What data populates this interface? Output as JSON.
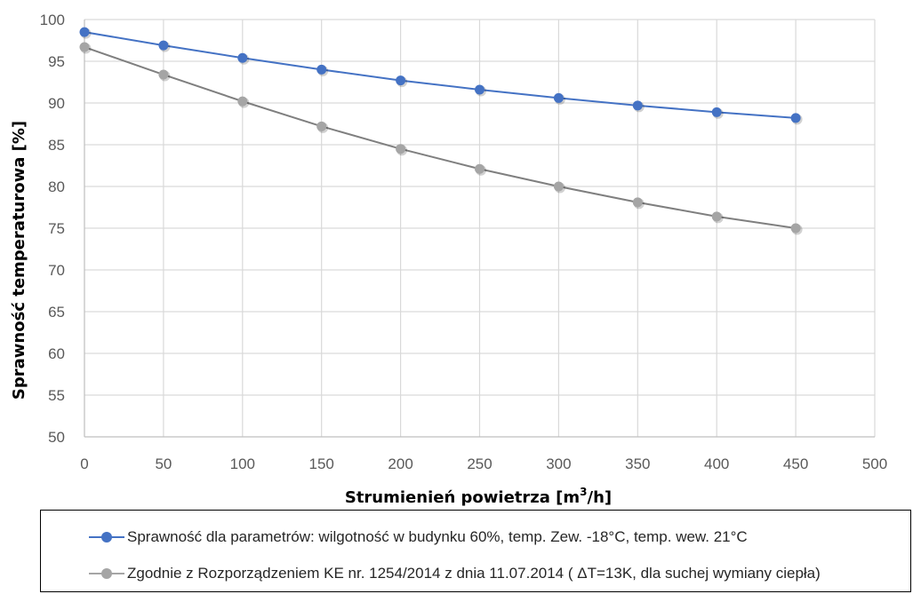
{
  "chart_data": {
    "type": "line",
    "xlabel_main": "Strumienień powietrza [m",
    "xlabel_sup": "3",
    "xlabel_tail": "/h]",
    "ylabel": "Sprawność temperaturowa [%]",
    "xlim": [
      0,
      500
    ],
    "ylim": [
      50,
      100
    ],
    "x_ticks": [
      "0",
      "50",
      "100",
      "150",
      "200",
      "250",
      "300",
      "350",
      "400",
      "450",
      "500"
    ],
    "y_ticks": [
      "50",
      "55",
      "60",
      "65",
      "70",
      "75",
      "80",
      "85",
      "90",
      "95",
      "100"
    ],
    "grid": true,
    "legend_position": "bottom",
    "x": [
      0,
      50,
      100,
      150,
      200,
      250,
      300,
      350,
      400,
      450
    ],
    "series": [
      {
        "name": "Sprawność dla parametrów: wilgotność w budynku 60%, temp. Zew. -18°C, temp. wew. 21°C",
        "color": "#4472C4",
        "values": [
          98.5,
          96.9,
          95.4,
          94.0,
          92.7,
          91.6,
          90.6,
          89.7,
          88.9,
          88.2
        ]
      },
      {
        "name": "Zgodnie z Rozporządzeniem KE nr. 1254/2014 z dnia 11.07.2014 ( ΔT=13K, dla suchej wymiany ciepła)",
        "color": "#7F7F7F",
        "values": [
          96.7,
          93.4,
          90.2,
          87.2,
          84.5,
          82.1,
          80.0,
          78.1,
          76.4,
          75.0
        ]
      }
    ]
  }
}
